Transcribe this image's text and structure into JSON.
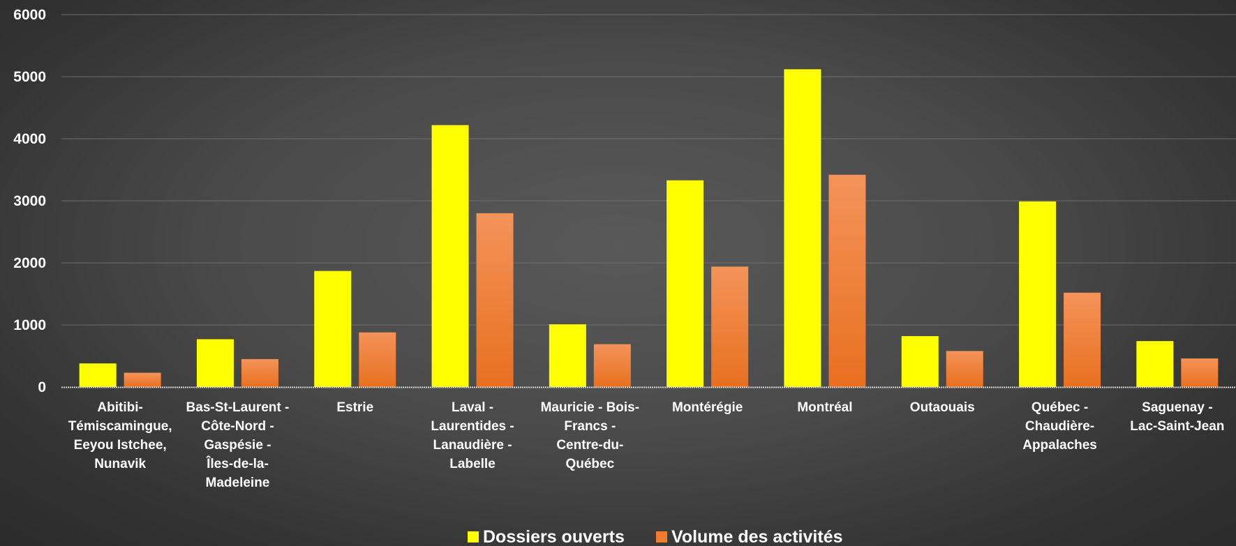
{
  "chart_data": {
    "type": "bar",
    "categories": [
      [
        "Abitibi-",
        "Témiscamingue,",
        "Eeyou Istchee,",
        "Nunavik"
      ],
      [
        "Bas-St-Laurent -",
        "Côte-Nord -",
        "Gaspésie -",
        "Îles-de-la-",
        "Madeleine"
      ],
      [
        "Estrie"
      ],
      [
        "Laval -",
        "Laurentides -",
        "Lanaudière -",
        "Labelle"
      ],
      [
        "Mauricie - Bois-",
        "Francs -",
        "Centre-du-",
        "Québec"
      ],
      [
        "Montérégie"
      ],
      [
        "Montréal"
      ],
      [
        "Outaouais"
      ],
      [
        "Québec -",
        "Chaudière-",
        "Appalaches"
      ],
      [
        "Saguenay -",
        "Lac-Saint-Jean"
      ]
    ],
    "series": [
      {
        "name": "Dossiers ouverts",
        "color": "#ffff00",
        "values": [
          380,
          770,
          1870,
          4220,
          1010,
          3330,
          5120,
          820,
          2990,
          740
        ]
      },
      {
        "name": "Volume des activités",
        "color": "#f07c2c",
        "values": [
          230,
          450,
          880,
          2800,
          690,
          1940,
          3420,
          580,
          1520,
          460
        ]
      }
    ],
    "ylim": [
      0,
      6000
    ],
    "yticks": [
      "0",
      "1000",
      "2000",
      "3000",
      "4000",
      "5000",
      "6000"
    ],
    "grid": true,
    "legend": "bottom-center"
  }
}
